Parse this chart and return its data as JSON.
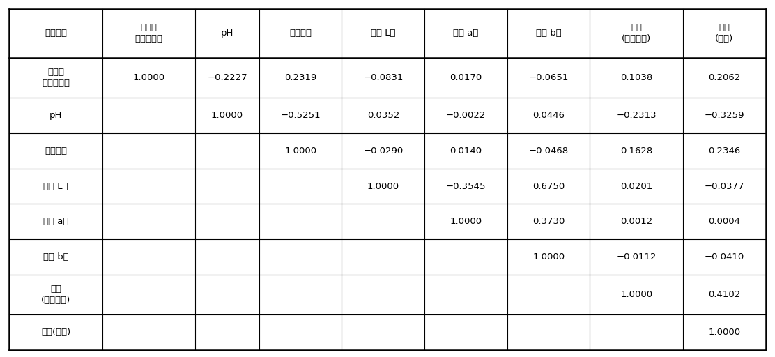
{
  "col_headers": [
    "품질인자",
    "가용성\n고형물함량",
    "pH",
    "적정산도",
    "색도 L값",
    "색도 a값",
    "색도 b값",
    "경도\n(껑질포함)",
    "경도\n(박피)"
  ],
  "row_headers": [
    "가용성\n고형물함량",
    "pH",
    "적정산도",
    "색도 L값",
    "색도 a값",
    "색도 b값",
    "경도\n(껑질포함)",
    "경도(박피)"
  ],
  "table_data": [
    [
      "1.0000",
      "−0.2227",
      "0.2319",
      "−0.0831",
      "0.0170",
      "−0.0651",
      "0.1038",
      "0.2062"
    ],
    [
      "",
      "1.0000",
      "−0.5251",
      "0.0352",
      "−0.0022",
      "0.0446",
      "−0.2313",
      "−0.3259"
    ],
    [
      "",
      "",
      "1.0000",
      "−0.0290",
      "0.0140",
      "−0.0468",
      "0.1628",
      "0.2346"
    ],
    [
      "",
      "",
      "",
      "1.0000",
      "−0.3545",
      "0.6750",
      "0.0201",
      "−0.0377"
    ],
    [
      "",
      "",
      "",
      "",
      "1.0000",
      "0.3730",
      "0.0012",
      "0.0004"
    ],
    [
      "",
      "",
      "",
      "",
      "",
      "1.0000",
      "−0.0112",
      "−0.0410"
    ],
    [
      "",
      "",
      "",
      "",
      "",
      "",
      "1.0000",
      "0.4102"
    ],
    [
      "",
      "",
      "",
      "",
      "",
      "",
      "",
      "1.0000"
    ]
  ],
  "text_color": "#000000",
  "border_color": "#000000",
  "font_size": 9.5
}
